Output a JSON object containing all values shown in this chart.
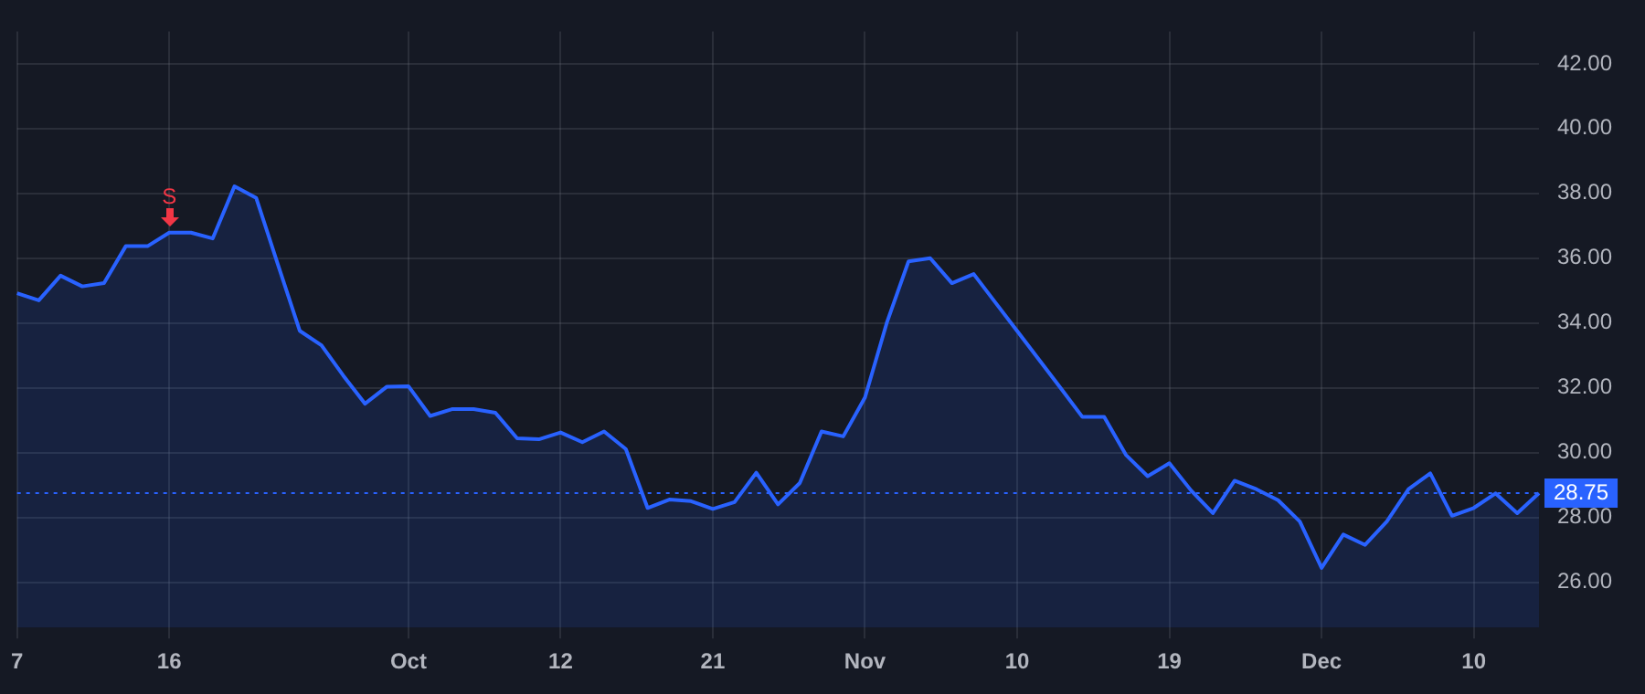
{
  "chart_data": {
    "type": "area",
    "categories": [
      "7",
      null,
      null,
      null,
      null,
      null,
      null,
      "16",
      null,
      null,
      null,
      null,
      null,
      null,
      null,
      null,
      null,
      null,
      "Oct",
      null,
      null,
      null,
      null,
      null,
      null,
      "12",
      null,
      null,
      null,
      null,
      null,
      null,
      "21",
      null,
      null,
      null,
      null,
      null,
      null,
      "Nov",
      null,
      null,
      null,
      null,
      null,
      null,
      "10",
      null,
      null,
      null,
      null,
      null,
      null,
      "19",
      null,
      null,
      null,
      null,
      null,
      null,
      "Dec",
      null,
      null,
      null,
      null,
      null,
      null,
      "10",
      null,
      null,
      null
    ],
    "series": [
      {
        "color": "#2962ff",
        "values": [
          34.92,
          34.7,
          35.46,
          35.13,
          35.23,
          36.37,
          36.37,
          36.79,
          36.79,
          36.61,
          38.22,
          37.86,
          35.8,
          33.76,
          33.31,
          32.38,
          31.51,
          32.03,
          32.05,
          31.13,
          31.34,
          31.34,
          31.23,
          30.44,
          30.41,
          30.62,
          30.32,
          30.65,
          30.11,
          28.29,
          28.55,
          28.5,
          28.26,
          28.47,
          29.38,
          28.4,
          29.06,
          30.65,
          30.5,
          31.7,
          34.0,
          35.9,
          36.0,
          35.23,
          35.51,
          34.63,
          33.75,
          32.87,
          31.99,
          31.1,
          31.1,
          29.93,
          29.27,
          29.67,
          28.83,
          28.13,
          29.13,
          28.87,
          28.53,
          27.87,
          26.44,
          27.47,
          27.15,
          27.87,
          28.87,
          29.36,
          28.05,
          28.29,
          28.74,
          28.13,
          28.75
        ]
      }
    ],
    "ylim": [
      24.6,
      43.0
    ],
    "yticks": [
      {
        "value": 26,
        "label": "26.00"
      },
      {
        "value": 28,
        "label": "28.00"
      },
      {
        "value": 30,
        "label": "30.00"
      },
      {
        "value": 32,
        "label": "32.00"
      },
      {
        "value": 34,
        "label": "34.00"
      },
      {
        "value": 36,
        "label": "36.00"
      },
      {
        "value": 38,
        "label": "38.00"
      },
      {
        "value": 40,
        "label": "40.00"
      },
      {
        "value": 42,
        "label": "42.00"
      }
    ],
    "ref_lines": [
      {
        "axis": "y",
        "value": 28.75,
        "label": "28.75",
        "color": "#2962ff",
        "line_style": "dotted"
      }
    ],
    "annotations": [
      {
        "text": "S",
        "x": "16",
        "y": 36.79
      }
    ],
    "grid": true,
    "legend": false,
    "marker": "none",
    "line_style": "solid"
  }
}
